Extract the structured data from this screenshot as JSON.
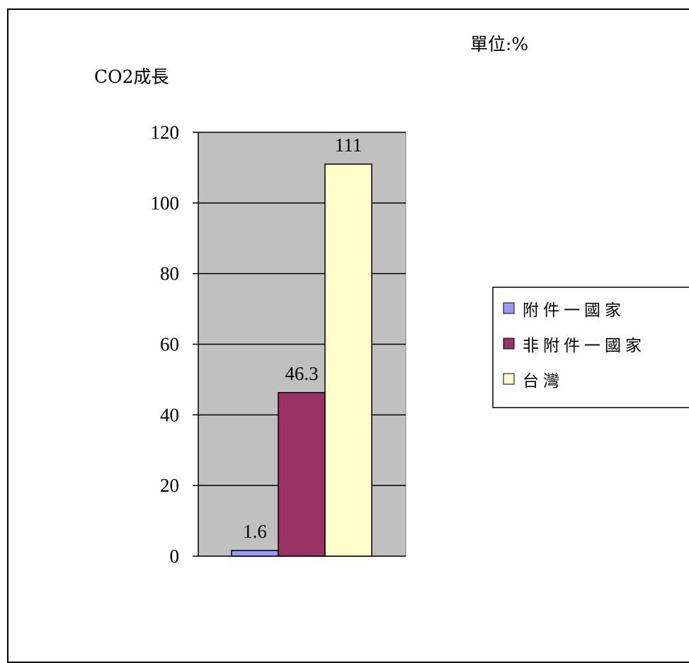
{
  "chart_data": {
    "type": "bar",
    "title": "",
    "ylabel": "CO2成長",
    "unit_note": "單位:%",
    "ylim": [
      0,
      120
    ],
    "yticks": [
      0,
      20,
      40,
      60,
      80,
      100,
      120
    ],
    "series": [
      {
        "name": "附件一國家",
        "values": [
          1.6
        ],
        "color": "#9999ff"
      },
      {
        "name": "非附件一國家",
        "values": [
          46.3
        ],
        "color": "#993366"
      },
      {
        "name": "台灣",
        "values": [
          111
        ],
        "color": "#ffffcc"
      }
    ],
    "data_labels": [
      "1.6",
      "46.3",
      "111"
    ],
    "plot_background": "#c0c0c0",
    "grid": true,
    "legend_position": "right"
  }
}
